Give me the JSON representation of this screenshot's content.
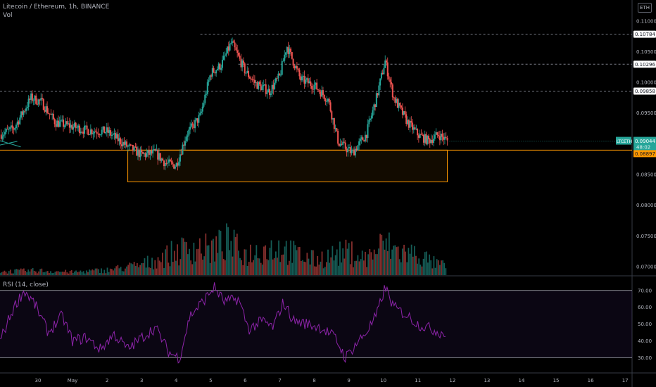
{
  "header": {
    "symbol_title": "Litecoin / Ethereum, 1h, BINANCE",
    "vol_label": "Vol",
    "rsi_label": "RSI (14, close)",
    "currency_button": "ETH"
  },
  "colors": {
    "background": "#000000",
    "up": "#26a69a",
    "down": "#ef5350",
    "zone": "#ff9800",
    "rsi": "#8e24aa",
    "grid_text": "#b2b5be"
  },
  "chart_data": [
    {
      "type": "candlestick",
      "title": "Litecoin / Ethereum, 1h, BINANCE",
      "price_ticks": [
        0.11,
        0.105,
        0.1,
        0.095,
        0.09,
        0.085,
        0.08,
        0.075,
        0.07
      ],
      "ylim": [
        0.0685,
        0.1125
      ],
      "x_ticks": [
        "30",
        "May",
        "2",
        "3",
        "4",
        "5",
        "6",
        "7",
        "8",
        "9",
        "10",
        "11",
        "12",
        "13",
        "14",
        "15",
        "16",
        "17"
      ],
      "xlim_days": [
        -1.1,
        17.2
      ],
      "price_path": [
        [
          -1.1,
          0.0915
        ],
        [
          -0.7,
          0.0925
        ],
        [
          -0.2,
          0.0975
        ],
        [
          0.1,
          0.0968
        ],
        [
          0.5,
          0.0935
        ],
        [
          1.0,
          0.0928
        ],
        [
          1.4,
          0.0922
        ],
        [
          2.0,
          0.092
        ],
        [
          2.6,
          0.0895
        ],
        [
          3.0,
          0.0882
        ],
        [
          3.4,
          0.0885
        ],
        [
          3.7,
          0.0868
        ],
        [
          4.0,
          0.0865
        ],
        [
          4.3,
          0.0915
        ],
        [
          4.7,
          0.0945
        ],
        [
          5.0,
          0.1015
        ],
        [
          5.3,
          0.1028
        ],
        [
          5.6,
          0.1065
        ],
        [
          6.0,
          0.1018
        ],
        [
          6.3,
          0.0998
        ],
        [
          6.7,
          0.0985
        ],
        [
          7.0,
          0.101
        ],
        [
          7.2,
          0.106
        ],
        [
          7.6,
          0.1005
        ],
        [
          8.0,
          0.0995
        ],
        [
          8.4,
          0.0972
        ],
        [
          8.7,
          0.0902
        ],
        [
          9.1,
          0.0885
        ],
        [
          9.5,
          0.0915
        ],
        [
          9.8,
          0.0975
        ],
        [
          10.05,
          0.1035
        ],
        [
          10.3,
          0.0975
        ],
        [
          10.7,
          0.0935
        ],
        [
          11.0,
          0.0915
        ],
        [
          11.3,
          0.0905
        ],
        [
          11.6,
          0.0915
        ],
        [
          11.85,
          0.0905
        ]
      ],
      "dashed_levels": [
        {
          "value": 0.10784,
          "label": "0.10784",
          "from_day": 4.7
        },
        {
          "value": 0.10296,
          "label": "0.10296",
          "from_day": 5.8
        },
        {
          "value": 0.09858,
          "label": "0.09858",
          "from_day": -1.1
        }
      ],
      "current_price": {
        "symbol": "LTCETH",
        "value": "0.09044",
        "countdown": "48:02"
      },
      "support_line": {
        "value": 0.08897,
        "label": "0.08897"
      },
      "zone": {
        "from_day": 2.6,
        "to_day": 11.85,
        "top": 0.08897,
        "bottom": 0.0838
      },
      "trend_lines": [
        {
          "from_day": -1.1,
          "from_value": 0.0905,
          "to_day": -0.5,
          "to_value": 0.0895
        },
        {
          "from_day": -1.1,
          "from_value": 0.0898,
          "to_day": -0.6,
          "to_value": 0.0904
        }
      ]
    },
    {
      "type": "bar",
      "title": "Vol",
      "note": "volume histogram, relative heights 0-1",
      "volume_profile": [
        [
          -1.1,
          0.07
        ],
        [
          0.0,
          0.09
        ],
        [
          1.0,
          0.06
        ],
        [
          2.0,
          0.1
        ],
        [
          2.6,
          0.16
        ],
        [
          3.0,
          0.2
        ],
        [
          3.6,
          0.35
        ],
        [
          4.0,
          0.45
        ],
        [
          4.5,
          0.55
        ],
        [
          5.0,
          0.5
        ],
        [
          5.5,
          0.65
        ],
        [
          6.0,
          0.4
        ],
        [
          6.5,
          0.5
        ],
        [
          7.0,
          0.55
        ],
        [
          7.5,
          0.4
        ],
        [
          8.0,
          0.3
        ],
        [
          8.5,
          0.38
        ],
        [
          9.0,
          0.45
        ],
        [
          9.5,
          0.32
        ],
        [
          10.0,
          0.6
        ],
        [
          10.5,
          0.45
        ],
        [
          11.0,
          0.4
        ],
        [
          11.5,
          0.22
        ],
        [
          11.85,
          0.18
        ]
      ]
    },
    {
      "type": "line",
      "title": "RSI (14, close)",
      "rsi_ticks": [
        70,
        60,
        50,
        40,
        30
      ],
      "ylim": [
        21,
        77
      ],
      "band": [
        30,
        70
      ],
      "series": [
        {
          "values": [
            [
              -1.1,
              40
            ],
            [
              -0.7,
              60
            ],
            [
              -0.4,
              70
            ],
            [
              -0.1,
              62
            ],
            [
              0.3,
              45
            ],
            [
              0.7,
              55
            ],
            [
              1.0,
              40
            ],
            [
              1.4,
              42
            ],
            [
              1.8,
              35
            ],
            [
              2.2,
              44
            ],
            [
              2.6,
              35
            ],
            [
              3.0,
              42
            ],
            [
              3.4,
              48
            ],
            [
              3.8,
              33
            ],
            [
              4.1,
              30
            ],
            [
              4.4,
              55
            ],
            [
              4.8,
              64
            ],
            [
              5.1,
              72
            ],
            [
              5.4,
              63
            ],
            [
              5.8,
              65
            ],
            [
              6.1,
              47
            ],
            [
              6.5,
              52
            ],
            [
              6.8,
              48
            ],
            [
              7.1,
              63
            ],
            [
              7.4,
              52
            ],
            [
              7.8,
              50
            ],
            [
              8.2,
              48
            ],
            [
              8.6,
              42
            ],
            [
              8.9,
              30
            ],
            [
              9.2,
              38
            ],
            [
              9.5,
              45
            ],
            [
              9.8,
              55
            ],
            [
              10.05,
              72
            ],
            [
              10.3,
              60
            ],
            [
              10.7,
              55
            ],
            [
              11.0,
              50
            ],
            [
              11.4,
              47
            ],
            [
              11.8,
              44
            ]
          ]
        }
      ]
    }
  ]
}
